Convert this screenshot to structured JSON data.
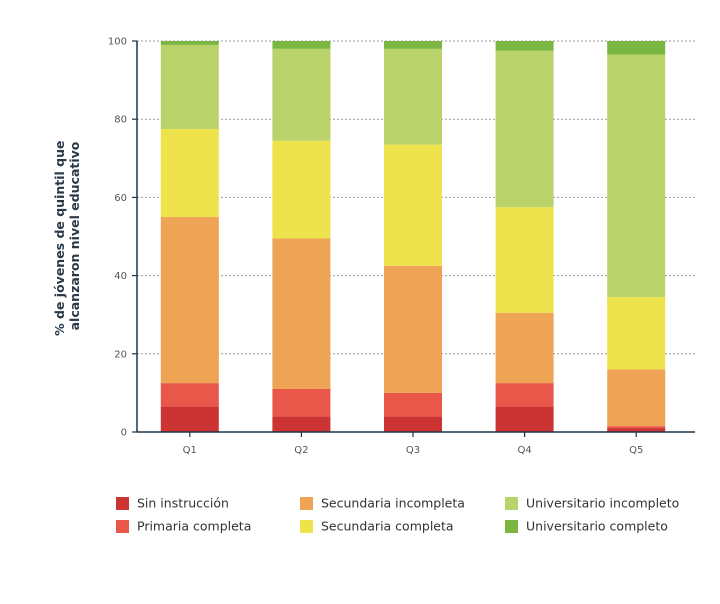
{
  "chart_data": {
    "type": "bar",
    "stacked": true,
    "categories": [
      "Q1",
      "Q2",
      "Q3",
      "Q4",
      "Q5"
    ],
    "ylabel_lines": [
      "% de jóvenes de quintil que",
      "alcanzaron nivel educativo"
    ],
    "ylim": [
      0,
      100
    ],
    "yticks": [
      0,
      20,
      40,
      60,
      80,
      100
    ],
    "grid": true,
    "legend_position": "bottom",
    "series": [
      {
        "name": "Sin instrucción",
        "color": "#cc3333",
        "values": [
          6.5,
          4,
          4,
          6.5,
          1
        ]
      },
      {
        "name": "Primaria completa",
        "color": "#e8574a",
        "values": [
          6,
          7,
          6,
          6,
          0.5
        ]
      },
      {
        "name": "Secundaria incompleta",
        "color": "#efa354",
        "values": [
          42.5,
          38.5,
          32.5,
          18,
          14.5
        ]
      },
      {
        "name": "Secundaria completa",
        "color": "#eee34d",
        "values": [
          22.5,
          25,
          31,
          27,
          18.5
        ]
      },
      {
        "name": "Universitario incompleto",
        "color": "#b9d26a",
        "values": [
          21.5,
          23.5,
          24.5,
          40,
          62
        ]
      },
      {
        "name": "Universitario completo",
        "color": "#7bb642",
        "values": [
          1,
          2,
          2,
          2.5,
          3.5
        ]
      }
    ]
  }
}
